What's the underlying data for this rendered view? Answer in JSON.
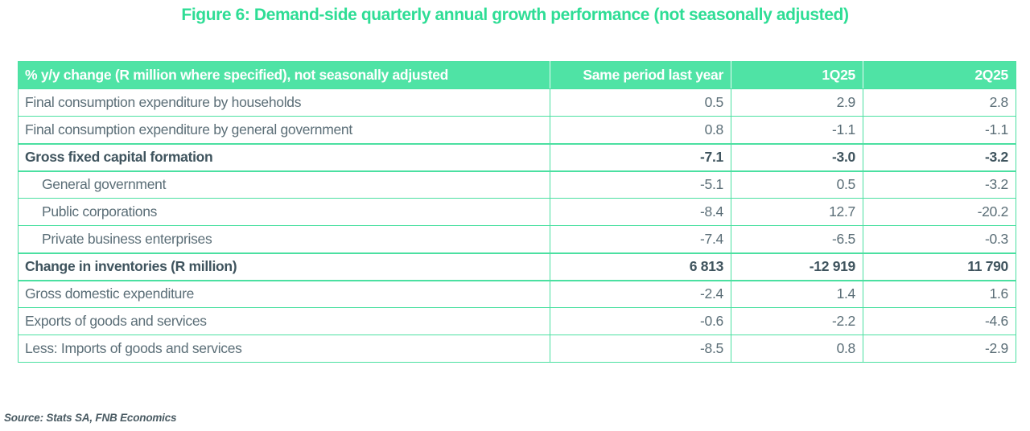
{
  "title": "Figure 6: Demand-side quarterly annual growth performance (not seasonally adjusted)",
  "source": "Source: Stats SA, FNB Economics",
  "colors": {
    "brand_green": "#4BE0A1",
    "header_background": "#4FE3A5",
    "title_text": "#2EDD95",
    "header_text": "#ffffff",
    "body_text": "#5b6e77",
    "bold_text": "#3f545e"
  },
  "table": {
    "columns": [
      "% y/y change (R million where specified), not seasonally adjusted",
      "Same period last year",
      "1Q25",
      "2Q25"
    ],
    "rows": [
      {
        "label": "Final consumption expenditure by households",
        "values": [
          "0.5",
          "2.9",
          "2.8"
        ],
        "bold": false,
        "indent": false
      },
      {
        "label": "Final consumption expenditure by general government",
        "values": [
          "0.8",
          "-1.1",
          "-1.1"
        ],
        "bold": false,
        "indent": false
      },
      {
        "label": "Gross fixed capital formation",
        "values": [
          "-7.1",
          "-3.0",
          "-3.2"
        ],
        "bold": true,
        "indent": false
      },
      {
        "label": "General government",
        "values": [
          "-5.1",
          "0.5",
          "-3.2"
        ],
        "bold": false,
        "indent": true
      },
      {
        "label": "Public corporations",
        "values": [
          "-8.4",
          "12.7",
          "-20.2"
        ],
        "bold": false,
        "indent": true
      },
      {
        "label": "Private business enterprises",
        "values": [
          "-7.4",
          "-6.5",
          "-0.3"
        ],
        "bold": false,
        "indent": true
      },
      {
        "label": "Change in inventories (R million)",
        "values": [
          "6 813",
          "-12 919",
          "11 790"
        ],
        "bold": true,
        "indent": false
      },
      {
        "label": "Gross domestic expenditure",
        "values": [
          "-2.4",
          "1.4",
          "1.6"
        ],
        "bold": false,
        "indent": false
      },
      {
        "label": "Exports of goods and services",
        "values": [
          "-0.6",
          "-2.2",
          "-4.6"
        ],
        "bold": false,
        "indent": false
      },
      {
        "label": "Less: Imports of goods and services",
        "values": [
          "-8.5",
          "0.8",
          "-2.9"
        ],
        "bold": false,
        "indent": false
      }
    ]
  }
}
